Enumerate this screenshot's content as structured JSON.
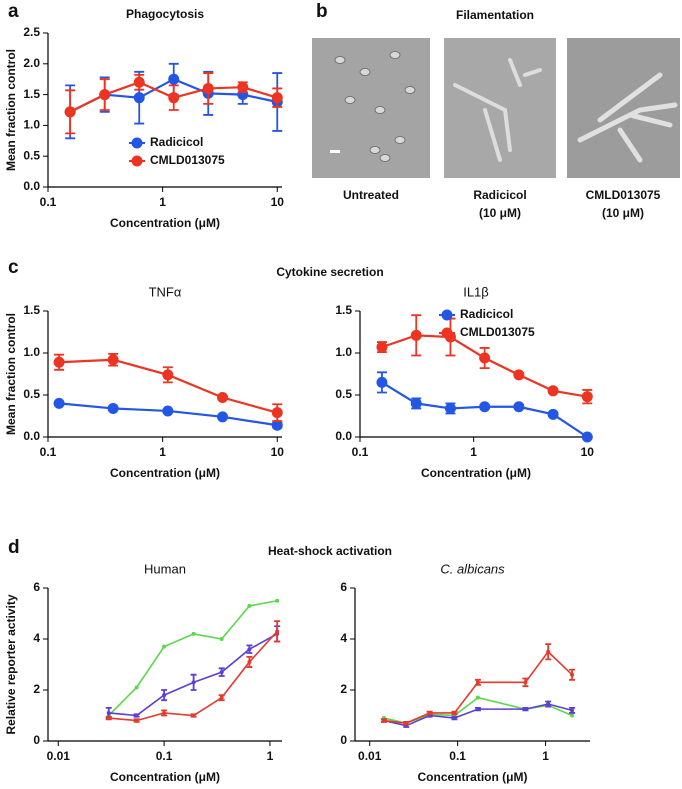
{
  "panel_labels": {
    "a": "a",
    "b": "b",
    "c": "c",
    "d": "d"
  },
  "filamentation": {
    "title": "Filamentation",
    "captions": [
      [
        "Untreated"
      ],
      [
        "Radicicol",
        "(10 μM)"
      ],
      [
        "CMLD013075",
        "(10 μM)"
      ]
    ]
  },
  "sections": {
    "cytokine": "Cytokine secretion",
    "heat_shock": "Heat-shock activation"
  },
  "chart_data": [
    {
      "type": "line",
      "title": "Phagocytosis",
      "x_label": "Concentration (μM)",
      "y_label": "Mean fraction control",
      "xlog": true,
      "x": [
        0.156,
        0.3125,
        0.625,
        1.25,
        2.5,
        5,
        10
      ],
      "xlim": [
        0.1,
        11
      ],
      "xticks": [
        0.1,
        1,
        10
      ],
      "ylim": [
        0,
        2.5
      ],
      "yticks": [
        {
          "value": 0,
          "label": "0.0"
        },
        {
          "value": 0.5,
          "label": "0.5"
        },
        {
          "value": 1,
          "label": "1.0"
        },
        {
          "value": 1.5,
          "label": "1.5"
        },
        {
          "value": 2,
          "label": "2.0"
        },
        {
          "value": 2.5,
          "label": "2.5"
        }
      ],
      "legend": "lower right",
      "series": [
        {
          "name": "Radicicol",
          "color": "#2456e6",
          "values": [
            1.22,
            1.5,
            1.45,
            1.75,
            1.52,
            1.5,
            1.38
          ],
          "errors": [
            0.43,
            0.28,
            0.42,
            0.25,
            0.35,
            0.15,
            0.47
          ]
        },
        {
          "name": "CMLD013075",
          "color": "#ec3420",
          "values": [
            1.22,
            1.5,
            1.7,
            1.45,
            1.6,
            1.62,
            1.45
          ],
          "errors": [
            0.35,
            0.25,
            0.12,
            0.2,
            0.25,
            0.08,
            0.15
          ]
        }
      ]
    },
    {
      "type": "line",
      "title": "TNFα",
      "x_label": "Concentration (μM)",
      "y_label": "Mean fraction control",
      "xlog": true,
      "x": [
        0.125,
        0.37,
        1.11,
        3.33,
        10
      ],
      "xlim": [
        0.1,
        11
      ],
      "xticks": [
        0.1,
        1,
        10
      ],
      "ylim": [
        0,
        1.5
      ],
      "yticks": [
        {
          "value": 0,
          "label": "0.0"
        },
        {
          "value": 0.5,
          "label": "0.5"
        },
        {
          "value": 1,
          "label": "1.0"
        },
        {
          "value": 1.5,
          "label": "1.5"
        }
      ],
      "series": [
        {
          "color": "#2456e6",
          "values": [
            0.4,
            0.34,
            0.31,
            0.24,
            0.14
          ],
          "errors": [
            0.02,
            0.02,
            0.02,
            0.02,
            0.03
          ]
        },
        {
          "color": "#ec3420",
          "values": [
            0.89,
            0.92,
            0.74,
            0.47,
            0.29
          ],
          "errors": [
            0.09,
            0.07,
            0.09,
            0.02,
            0.1
          ]
        }
      ]
    },
    {
      "type": "line",
      "title": "IL1β",
      "x_label": "Concentration (μM)",
      "xlog": true,
      "x": [
        0.156,
        0.3125,
        0.625,
        1.25,
        2.5,
        5,
        10
      ],
      "xlim": [
        0.1,
        11
      ],
      "xticks": [
        0.1,
        1,
        10
      ],
      "ylim": [
        0,
        1.5
      ],
      "yticks": [
        {
          "value": 0,
          "label": "0.0"
        },
        {
          "value": 0.5,
          "label": "0.5"
        },
        {
          "value": 1,
          "label": "1.0"
        },
        {
          "value": 1.5,
          "label": "1.5"
        }
      ],
      "legend": "upper right",
      "series": [
        {
          "name": "Radicicol",
          "color": "#2456e6",
          "values": [
            0.65,
            0.4,
            0.34,
            0.36,
            0.36,
            0.27,
            0
          ],
          "errors": [
            0.12,
            0.06,
            0.06,
            0.02,
            0.02,
            0.02,
            0.01
          ]
        },
        {
          "name": "CMLD013075",
          "color": "#ec3420",
          "values": [
            1.07,
            1.21,
            1.19,
            0.94,
            0.74,
            0.55,
            0.48
          ],
          "errors": [
            0.06,
            0.24,
            0.22,
            0.12,
            0.02,
            0.02,
            0.08
          ]
        }
      ]
    },
    {
      "type": "line",
      "title": "Human",
      "x_label": "Concentration (μM)",
      "y_label": "Relative reporter activity",
      "xlog": true,
      "x": [
        0.03,
        0.055,
        0.1,
        0.19,
        0.35,
        0.64,
        1.17
      ],
      "xlim": [
        0.008,
        1.3
      ],
      "xticks": [
        0.01,
        0.1,
        1
      ],
      "ylim": [
        0,
        6
      ],
      "yticks": [
        0,
        2,
        4,
        6
      ],
      "series": [
        {
          "color": "#5ad84a",
          "values": [
            1.0,
            2.1,
            3.7,
            4.2,
            4.0,
            5.3,
            5.5
          ]
        },
        {
          "color": "#5b3fd6",
          "values": [
            1.1,
            1.0,
            1.8,
            2.3,
            2.7,
            3.6,
            4.2
          ],
          "errors": [
            0.2,
            0.05,
            0.2,
            0.3,
            0.15,
            0.15,
            0.3
          ]
        },
        {
          "color": "#e33b2c",
          "values": [
            0.9,
            0.8,
            1.1,
            1.0,
            1.7,
            3.1,
            4.3
          ],
          "errors": [
            0.05,
            0.05,
            0.1,
            0.05,
            0.1,
            0.2,
            0.4
          ]
        }
      ]
    },
    {
      "type": "line",
      "title": "C. albicans",
      "x_label": "Concentration (μM)",
      "xlog": true,
      "x": [
        0.0145,
        0.026,
        0.048,
        0.092,
        0.17,
        0.59,
        1.07,
        2.0
      ],
      "xlim": [
        0.0068,
        3.2
      ],
      "xticks": [
        0.01,
        0.1,
        1
      ],
      "ylim": [
        0,
        6
      ],
      "yticks": [
        0,
        2,
        4,
        6
      ],
      "series": [
        {
          "color": "#5ad84a",
          "values": [
            0.9,
            0.7,
            1.05,
            1.0,
            1.7,
            1.25,
            1.4,
            1.0
          ]
        },
        {
          "color": "#5b3fd6",
          "values": [
            0.8,
            0.6,
            1.0,
            0.9,
            1.25,
            1.25,
            1.45,
            1.2
          ],
          "errors": [
            0.05,
            0.05,
            0.05,
            0.05,
            0.05,
            0.05,
            0.1,
            0.1
          ]
        },
        {
          "color": "#e33b2c",
          "values": [
            0.8,
            0.7,
            1.1,
            1.1,
            2.3,
            2.3,
            3.5,
            2.6
          ],
          "errors": [
            0.05,
            0.05,
            0.05,
            0.05,
            0.1,
            0.15,
            0.3,
            0.2
          ]
        }
      ]
    }
  ]
}
